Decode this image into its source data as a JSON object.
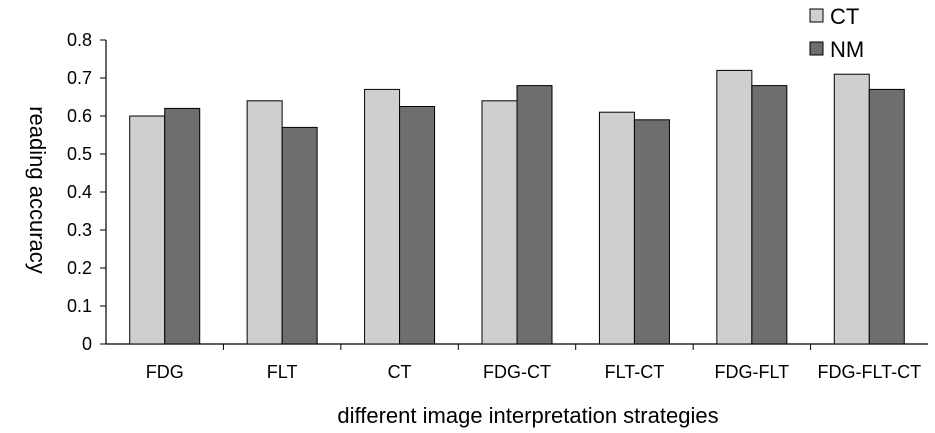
{
  "chart_data": {
    "type": "bar",
    "xlabel": "different image interpretation strategies",
    "ylabel": "reading accuracy",
    "ylim": [
      0,
      0.8
    ],
    "yticks": [
      "0",
      "0.1",
      "0.2",
      "0.3",
      "0.4",
      "0.5",
      "0.6",
      "0.7",
      "0.8"
    ],
    "categories": [
      "FDG",
      "FLT",
      "CT",
      "FDG-CT",
      "FLT-CT",
      "FDG-FLT",
      "FDG-FLT-CT"
    ],
    "series": [
      {
        "name": "CT",
        "color": "#cfcfcf",
        "values": [
          0.6,
          0.64,
          0.67,
          0.64,
          0.61,
          0.72,
          0.71
        ]
      },
      {
        "name": "NM",
        "color": "#6e6e6e",
        "values": [
          0.62,
          0.57,
          0.625,
          0.68,
          0.59,
          0.68,
          0.67
        ]
      }
    ],
    "legend_position": "top-right",
    "grid": false
  }
}
